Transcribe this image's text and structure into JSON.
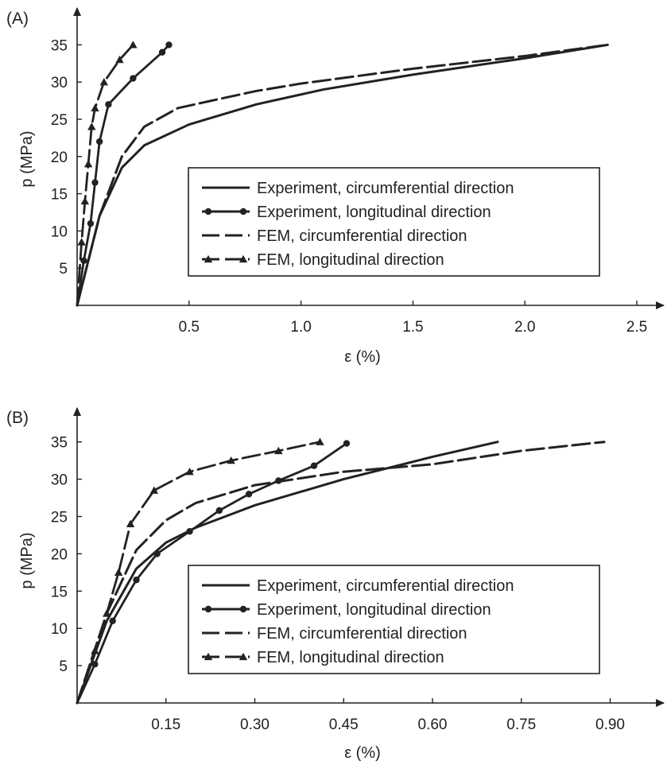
{
  "chart_data": [
    {
      "type": "line",
      "panel_label": "(A)",
      "ylabel": "p (MPa)",
      "xlabel": "ε (%)",
      "xlim": [
        0,
        2.7
      ],
      "ylim": [
        0,
        38
      ],
      "xticks": [
        0.5,
        1.0,
        1.5,
        2.0,
        2.5
      ],
      "xtick_labels": [
        "0.5",
        "1.0",
        "1.5",
        "2.0",
        "2.5"
      ],
      "yticks": [
        5,
        10,
        15,
        20,
        25,
        30,
        35
      ],
      "ytick_labels": [
        "5",
        "10",
        "15",
        "20",
        "25",
        "30",
        "35"
      ],
      "legend_position": "center-right",
      "series": [
        {
          "name": "Experiment, circumferential direction",
          "style": "solid",
          "marker": "none",
          "x": [
            0,
            0.1,
            0.2,
            0.3,
            0.5,
            0.8,
            1.1,
            1.5,
            2.0,
            2.37
          ],
          "y": [
            0,
            12,
            18.5,
            21.5,
            24.3,
            27,
            29,
            31,
            33.2,
            35
          ]
        },
        {
          "name": "Experiment, longitudinal direction",
          "style": "solid",
          "marker": "circle",
          "x": [
            0,
            0.03,
            0.06,
            0.08,
            0.1,
            0.14,
            0.25,
            0.38,
            0.41
          ],
          "y": [
            0,
            6,
            11,
            16.5,
            22,
            27,
            30.5,
            34,
            35
          ]
        },
        {
          "name": "FEM, circumferential direction",
          "style": "dash",
          "marker": "none",
          "x": [
            0,
            0.1,
            0.2,
            0.3,
            0.45,
            0.6,
            0.8,
            1.0,
            1.5,
            2.0,
            2.37
          ],
          "y": [
            0,
            12,
            20,
            24,
            26.5,
            27.5,
            28.8,
            29.8,
            31.8,
            33.5,
            35
          ]
        },
        {
          "name": "FEM, longitudinal direction",
          "style": "dash",
          "marker": "triangle",
          "x": [
            0,
            0.02,
            0.035,
            0.05,
            0.065,
            0.08,
            0.12,
            0.19,
            0.25
          ],
          "y": [
            0,
            8.5,
            14,
            19,
            24,
            26.5,
            30,
            33,
            35
          ]
        }
      ]
    },
    {
      "type": "line",
      "panel_label": "(B)",
      "ylabel": "p (MPa)",
      "xlabel": "ε (%)",
      "xlim": [
        0,
        0.96
      ],
      "ylim": [
        0,
        38
      ],
      "xticks": [
        0.15,
        0.3,
        0.45,
        0.6,
        0.75,
        0.9
      ],
      "xtick_labels": [
        "0.15",
        "0.30",
        "0.45",
        "0.60",
        "0.75",
        "0.90"
      ],
      "yticks": [
        5,
        10,
        15,
        20,
        25,
        30,
        35
      ],
      "ytick_labels": [
        "5",
        "10",
        "15",
        "20",
        "25",
        "30",
        "35"
      ],
      "legend_position": "center-right",
      "series": [
        {
          "name": "Experiment, circumferential direction",
          "style": "solid",
          "marker": "none",
          "x": [
            0,
            0.05,
            0.1,
            0.15,
            0.2,
            0.3,
            0.45,
            0.6,
            0.71
          ],
          "y": [
            0,
            11,
            18,
            21.5,
            23.5,
            26.5,
            30,
            33,
            35
          ]
        },
        {
          "name": "Experiment, longitudinal direction",
          "style": "solid",
          "marker": "circle",
          "x": [
            0,
            0.03,
            0.06,
            0.1,
            0.135,
            0.19,
            0.24,
            0.29,
            0.34,
            0.4,
            0.455
          ],
          "y": [
            0,
            5.2,
            11,
            16.5,
            20,
            23,
            25.8,
            28,
            29.8,
            31.8,
            34.8
          ]
        },
        {
          "name": "FEM, circumferential direction",
          "style": "dash",
          "marker": "none",
          "x": [
            0,
            0.05,
            0.1,
            0.15,
            0.2,
            0.3,
            0.45,
            0.6,
            0.75,
            0.89
          ],
          "y": [
            0,
            12,
            20.5,
            24.5,
            26.8,
            29.2,
            31,
            32,
            33.8,
            35
          ]
        },
        {
          "name": "FEM, longitudinal direction",
          "style": "dash",
          "marker": "triangle",
          "x": [
            0,
            0.03,
            0.05,
            0.07,
            0.09,
            0.13,
            0.19,
            0.26,
            0.34,
            0.41
          ],
          "y": [
            0,
            7,
            12,
            17.5,
            24,
            28.5,
            31,
            32.5,
            33.8,
            35
          ]
        }
      ]
    }
  ]
}
